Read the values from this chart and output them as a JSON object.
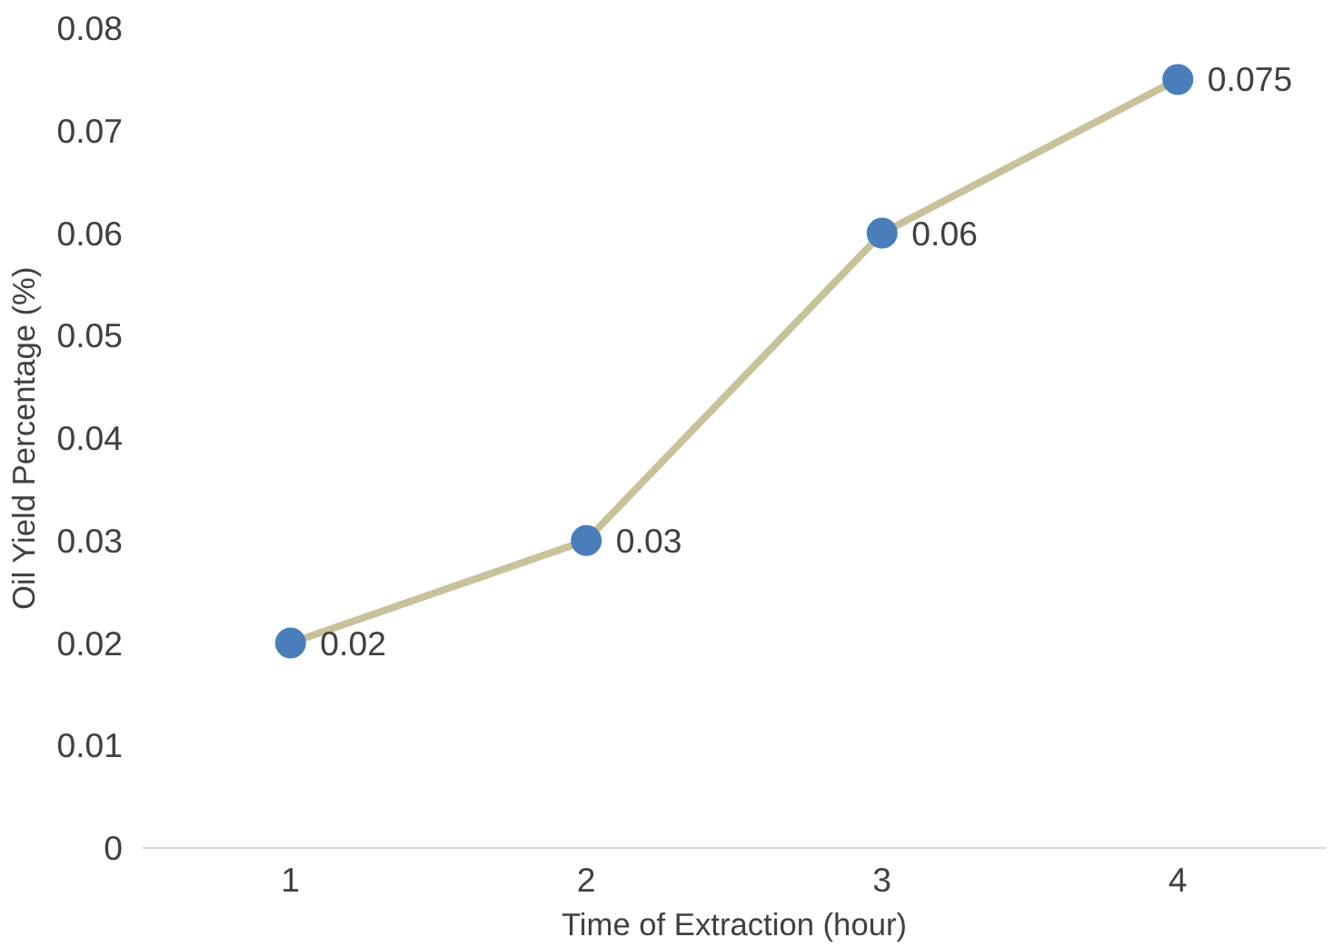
{
  "chart_data": {
    "type": "line",
    "xlabel": "Time of Extraction (hour)",
    "ylabel": "Oil Yield Percentage (%)",
    "categories": [
      "1",
      "2",
      "3",
      "4"
    ],
    "series": [
      {
        "color": "#c8c29b",
        "colors": [
          "#4a7ebb",
          "#4a7ebb",
          "#4a7ebb",
          "#4a7ebb"
        ],
        "values": [
          0.02,
          0.03,
          0.06,
          0.075
        ]
      }
    ],
    "ylim": [
      0,
      0.08
    ],
    "yticks": [
      0,
      0.01,
      0.02,
      0.03,
      0.04,
      0.05,
      0.06,
      0.07,
      0.08
    ],
    "data_labels": true,
    "marker": "circle",
    "line_style": "solid",
    "grid": false
  }
}
